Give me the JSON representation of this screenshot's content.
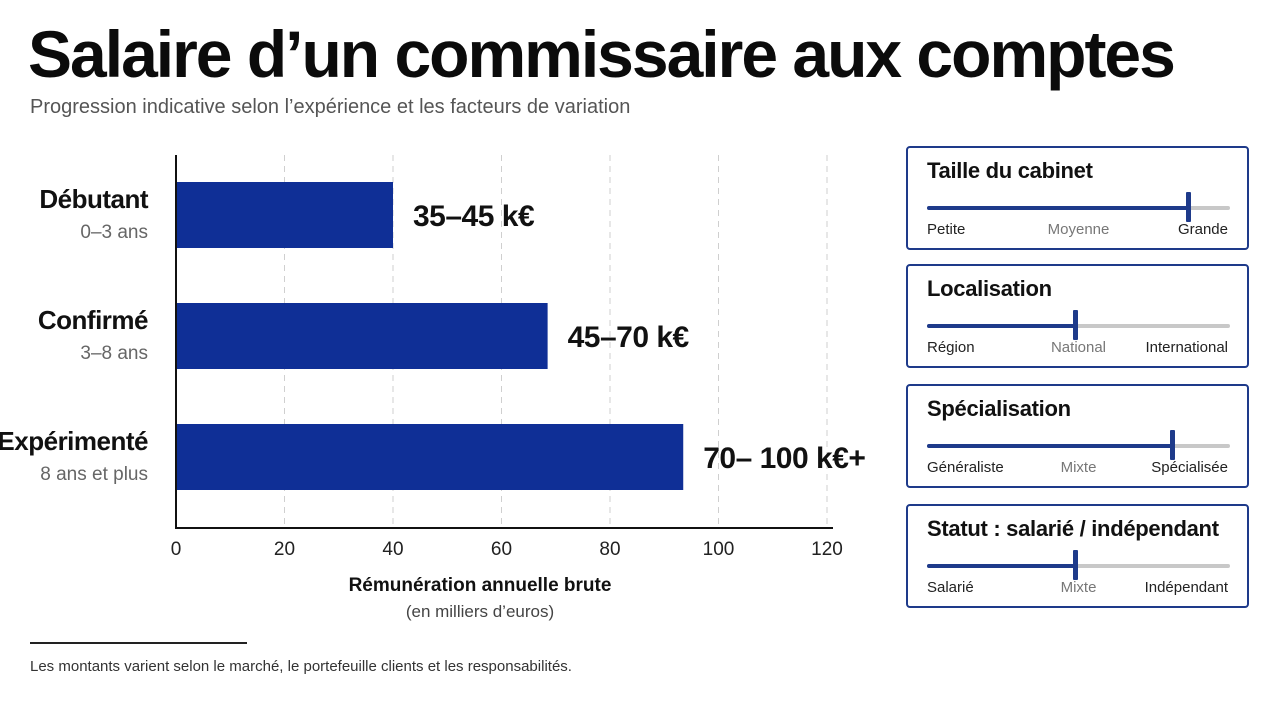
{
  "title": "Salaire d’un commissaire aux comptes",
  "subtitle": "Progression indicative selon l’expérience et les facteurs de variation",
  "chart_data": {
    "type": "bar",
    "orientation": "horizontal",
    "categories": [
      {
        "label": "Débutant",
        "sublabel": "0–3 ans",
        "value": 40,
        "value_label": "35–45 k€"
      },
      {
        "label": "Confirmé",
        "sublabel": "3–8 ans",
        "value": 68.5,
        "value_label": "45–70 k€"
      },
      {
        "label": "Expérimenté",
        "sublabel": "8 ans et plus",
        "value": 93.5,
        "value_label": "70– 100 k€+"
      }
    ],
    "xlim": [
      0,
      120
    ],
    "xticks": [
      0,
      20,
      40,
      60,
      80,
      100,
      120
    ],
    "xlabel": "Rémunération annuelle brute",
    "xlabel_sub": "(en milliers d’euros)",
    "grid": "vertical dashed",
    "bar_color": "#0f2f96"
  },
  "factors": [
    {
      "title": "Taille du cabinet",
      "labels": [
        "Petite",
        "Moyenne",
        "Grande"
      ],
      "level": 0.86
    },
    {
      "title": "Localisation",
      "labels": [
        "Région",
        "National",
        "International"
      ],
      "level": 0.49
    },
    {
      "title": "Spécialisation",
      "labels": [
        "Généraliste",
        "Mixte",
        "Spécialisée"
      ],
      "level": 0.81
    },
    {
      "title": "Statut : salarié / indépendant",
      "labels": [
        "Salarié",
        "Mixte",
        "Indépendant"
      ],
      "level": 0.49
    }
  ],
  "footnote": "Les montants varient selon le marché, le portefeuille clients et les responsabilités.",
  "accent_color": "#1e3a8a"
}
